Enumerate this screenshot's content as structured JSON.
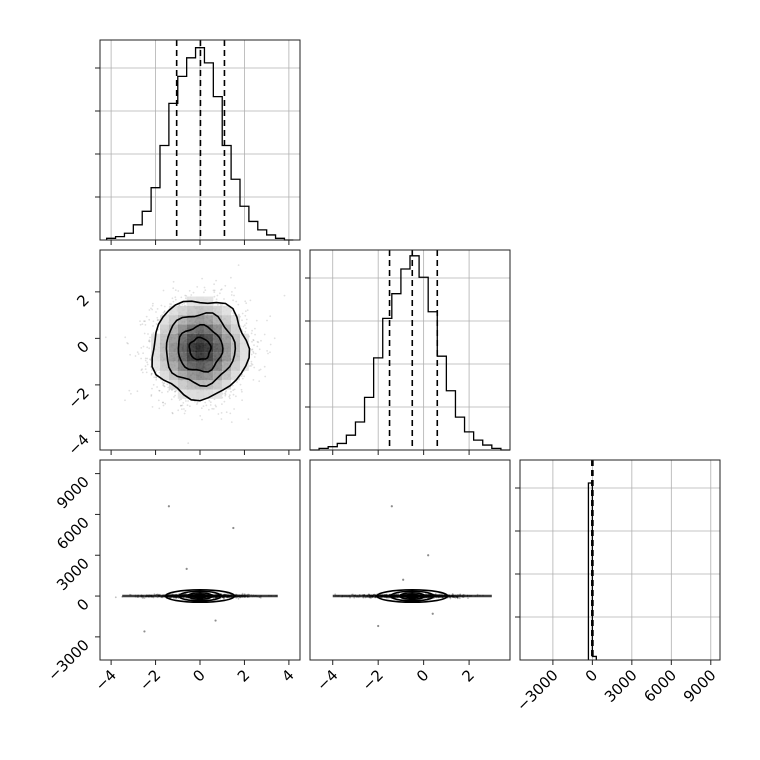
{
  "chart_data": [
    {
      "type": "histogram",
      "panel": "x-marginal",
      "x": [
        -4.2,
        -3.8,
        -3.4,
        -3.0,
        -2.6,
        -2.2,
        -1.8,
        -1.4,
        -1.0,
        -0.6,
        -0.2,
        0.2,
        0.6,
        1.0,
        1.4,
        1.8,
        2.2,
        2.6,
        3.0,
        3.4,
        3.8
      ],
      "values": [
        1,
        2,
        4,
        9,
        17,
        31,
        56,
        81,
        97,
        108,
        114,
        105,
        85,
        56,
        36,
        20,
        11,
        6,
        3,
        1,
        0
      ],
      "xlim": [
        -4.5,
        4.5
      ],
      "quantile_lines": [
        -1.05,
        0.02,
        1.1
      ]
    },
    {
      "type": "histogram",
      "panel": "y-marginal",
      "x": [
        -5.0,
        -4.6,
        -4.2,
        -3.8,
        -3.4,
        -3.0,
        -2.6,
        -2.2,
        -1.8,
        -1.4,
        -1.0,
        -0.6,
        -0.2,
        0.2,
        0.6,
        1.0,
        1.4,
        1.8,
        2.2,
        2.6,
        3.0,
        3.4
      ],
      "values": [
        0,
        1,
        2,
        4,
        9,
        17,
        32,
        56,
        80,
        95,
        110,
        118,
        105,
        84,
        57,
        36,
        20,
        11,
        6,
        3,
        1,
        0
      ],
      "xlim": [
        -5.0,
        3.8
      ],
      "quantile_lines": [
        -1.5,
        -0.5,
        0.6
      ]
    },
    {
      "type": "histogram",
      "panel": "z-marginal",
      "x": [
        -300,
        0
      ],
      "values": [
        100,
        2
      ],
      "xlim": [
        -5500,
        9700
      ],
      "quantile_lines": [
        -40,
        0,
        40
      ]
    },
    {
      "type": "heatmap",
      "panel": "x-vs-y",
      "xlim": [
        -4.5,
        4.5
      ],
      "ylim": [
        -4.8,
        3.8
      ],
      "contour_radii": [
        0.48,
        1.0,
        1.55,
        2.15
      ],
      "center": [
        0.0,
        -0.45
      ]
    },
    {
      "type": "scatter",
      "panel": "x-vs-z",
      "xlim": [
        -4.5,
        4.5
      ],
      "ylim": [
        -4700,
        10000
      ],
      "outliers": [
        [
          -1.4,
          6600
        ],
        [
          1.5,
          5000
        ],
        [
          -0.6,
          2000
        ],
        [
          0.7,
          -1800
        ],
        [
          -2.5,
          -2600
        ]
      ]
    },
    {
      "type": "scatter",
      "panel": "y-vs-z",
      "xlim": [
        -5.0,
        3.8
      ],
      "ylim": [
        -4700,
        10000
      ],
      "outliers": [
        [
          -1.4,
          6600
        ],
        [
          0.2,
          3000
        ],
        [
          -0.9,
          1200
        ],
        [
          0.4,
          -1300
        ],
        [
          -2.0,
          -2200
        ]
      ]
    }
  ],
  "ticks": {
    "x": [
      "−4",
      "−2",
      "0",
      "2",
      "4"
    ],
    "y": [
      "−4",
      "−2",
      "0",
      "2"
    ],
    "z": [
      "−3000",
      "0",
      "3000",
      "6000",
      "9000"
    ]
  },
  "colors": {
    "line": "#000000",
    "grid": "#b0b0b0",
    "scatter": "#000000"
  }
}
